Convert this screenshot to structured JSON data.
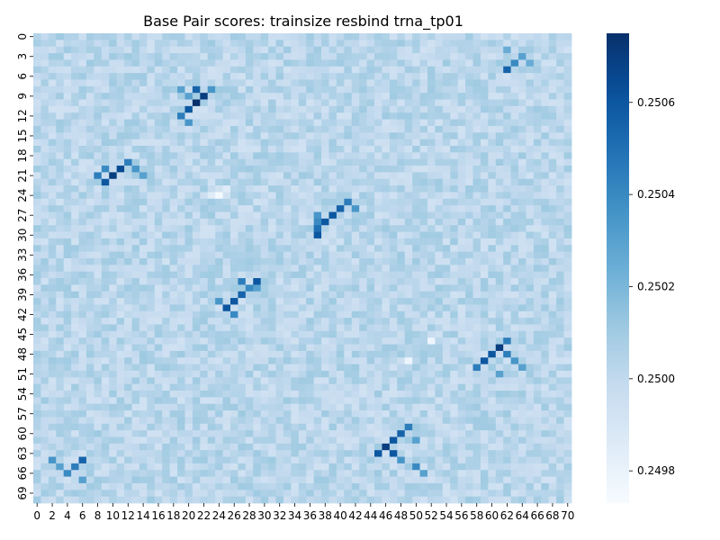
{
  "chart_data": {
    "type": "heatmap",
    "title": "Base Pair scores: trainsize resbind trna_tp01",
    "xlabel": "",
    "ylabel": "",
    "rows": 71,
    "cols": 71,
    "x_tick_labels": [
      "0",
      "2",
      "4",
      "6",
      "8",
      "10",
      "12",
      "14",
      "16",
      "18",
      "20",
      "22",
      "24",
      "26",
      "28",
      "30",
      "32",
      "34",
      "36",
      "38",
      "40",
      "42",
      "44",
      "46",
      "48",
      "50",
      "52",
      "54",
      "56",
      "58",
      "60",
      "62",
      "64",
      "66",
      "68",
      "70"
    ],
    "y_tick_labels": [
      "0",
      "3",
      "6",
      "9",
      "12",
      "15",
      "18",
      "21",
      "24",
      "27",
      "30",
      "33",
      "36",
      "39",
      "42",
      "45",
      "48",
      "51",
      "54",
      "57",
      "60",
      "63",
      "66",
      "69"
    ],
    "colorbar": {
      "colormap": "Blues",
      "vmin": 0.24973,
      "vmax": 0.25075,
      "ticks": [
        0.2498,
        0.25,
        0.2502,
        0.2504,
        0.2506
      ],
      "tick_labels": [
        "0.2498",
        "0.2500",
        "0.2502",
        "0.2504",
        "0.2506"
      ]
    },
    "base_value": 0.25002,
    "noise_amplitude": 9e-05,
    "highlights": [
      {
        "row": 5,
        "col": 62,
        "value": 0.25055
      },
      {
        "row": 4,
        "col": 63,
        "value": 0.2504
      },
      {
        "row": 3,
        "col": 64,
        "value": 0.2503
      },
      {
        "row": 2,
        "col": 62,
        "value": 0.25025
      },
      {
        "row": 4,
        "col": 65,
        "value": 0.25025
      },
      {
        "row": 8,
        "col": 21,
        "value": 0.25055
      },
      {
        "row": 9,
        "col": 22,
        "value": 0.2507
      },
      {
        "row": 10,
        "col": 21,
        "value": 0.25075
      },
      {
        "row": 11,
        "col": 20,
        "value": 0.2506
      },
      {
        "row": 12,
        "col": 19,
        "value": 0.25045
      },
      {
        "row": 13,
        "col": 20,
        "value": 0.25035
      },
      {
        "row": 8,
        "col": 19,
        "value": 0.2503
      },
      {
        "row": 9,
        "col": 20,
        "value": 0.2503
      },
      {
        "row": 8,
        "col": 23,
        "value": 0.25035
      },
      {
        "row": 19,
        "col": 12,
        "value": 0.25045
      },
      {
        "row": 20,
        "col": 11,
        "value": 0.25065
      },
      {
        "row": 21,
        "col": 10,
        "value": 0.2507
      },
      {
        "row": 22,
        "col": 9,
        "value": 0.2506
      },
      {
        "row": 21,
        "col": 8,
        "value": 0.25045
      },
      {
        "row": 20,
        "col": 9,
        "value": 0.2504
      },
      {
        "row": 20,
        "col": 13,
        "value": 0.25035
      },
      {
        "row": 21,
        "col": 14,
        "value": 0.2503
      },
      {
        "row": 25,
        "col": 41,
        "value": 0.25045
      },
      {
        "row": 26,
        "col": 40,
        "value": 0.25055
      },
      {
        "row": 27,
        "col": 39,
        "value": 0.2506
      },
      {
        "row": 28,
        "col": 38,
        "value": 0.2506
      },
      {
        "row": 29,
        "col": 37,
        "value": 0.2505
      },
      {
        "row": 30,
        "col": 37,
        "value": 0.2506
      },
      {
        "row": 28,
        "col": 37,
        "value": 0.2504
      },
      {
        "row": 27,
        "col": 37,
        "value": 0.25035
      },
      {
        "row": 26,
        "col": 42,
        "value": 0.25035
      },
      {
        "row": 37,
        "col": 29,
        "value": 0.2506
      },
      {
        "row": 37,
        "col": 27,
        "value": 0.25045
      },
      {
        "row": 38,
        "col": 28,
        "value": 0.2504
      },
      {
        "row": 39,
        "col": 27,
        "value": 0.25055
      },
      {
        "row": 40,
        "col": 26,
        "value": 0.2506
      },
      {
        "row": 41,
        "col": 25,
        "value": 0.2506
      },
      {
        "row": 42,
        "col": 26,
        "value": 0.2504
      },
      {
        "row": 40,
        "col": 24,
        "value": 0.25035
      },
      {
        "row": 38,
        "col": 29,
        "value": 0.2503
      },
      {
        "row": 46,
        "col": 62,
        "value": 0.25045
      },
      {
        "row": 47,
        "col": 61,
        "value": 0.2507
      },
      {
        "row": 48,
        "col": 60,
        "value": 0.2506
      },
      {
        "row": 49,
        "col": 59,
        "value": 0.2506
      },
      {
        "row": 50,
        "col": 58,
        "value": 0.25045
      },
      {
        "row": 48,
        "col": 62,
        "value": 0.25045
      },
      {
        "row": 49,
        "col": 63,
        "value": 0.25035
      },
      {
        "row": 50,
        "col": 64,
        "value": 0.2503
      },
      {
        "row": 51,
        "col": 61,
        "value": 0.2503
      },
      {
        "row": 59,
        "col": 49,
        "value": 0.25045
      },
      {
        "row": 60,
        "col": 48,
        "value": 0.25055
      },
      {
        "row": 61,
        "col": 47,
        "value": 0.2506
      },
      {
        "row": 62,
        "col": 46,
        "value": 0.2507
      },
      {
        "row": 63,
        "col": 45,
        "value": 0.2506
      },
      {
        "row": 63,
        "col": 47,
        "value": 0.2506
      },
      {
        "row": 64,
        "col": 48,
        "value": 0.25035
      },
      {
        "row": 65,
        "col": 50,
        "value": 0.2504
      },
      {
        "row": 66,
        "col": 51,
        "value": 0.2503
      },
      {
        "row": 61,
        "col": 50,
        "value": 0.2503
      },
      {
        "row": 64,
        "col": 6,
        "value": 0.25055
      },
      {
        "row": 65,
        "col": 5,
        "value": 0.25045
      },
      {
        "row": 66,
        "col": 4,
        "value": 0.2504
      },
      {
        "row": 64,
        "col": 2,
        "value": 0.25035
      },
      {
        "row": 67,
        "col": 6,
        "value": 0.2503
      },
      {
        "row": 65,
        "col": 3,
        "value": 0.2503
      },
      {
        "row": 24,
        "col": 24,
        "value": 0.24975
      },
      {
        "row": 23,
        "col": 25,
        "value": 0.24985
      },
      {
        "row": 24,
        "col": 23,
        "value": 0.24985
      },
      {
        "row": 46,
        "col": 52,
        "value": 0.24978
      },
      {
        "row": 49,
        "col": 49,
        "value": 0.24978
      }
    ]
  }
}
